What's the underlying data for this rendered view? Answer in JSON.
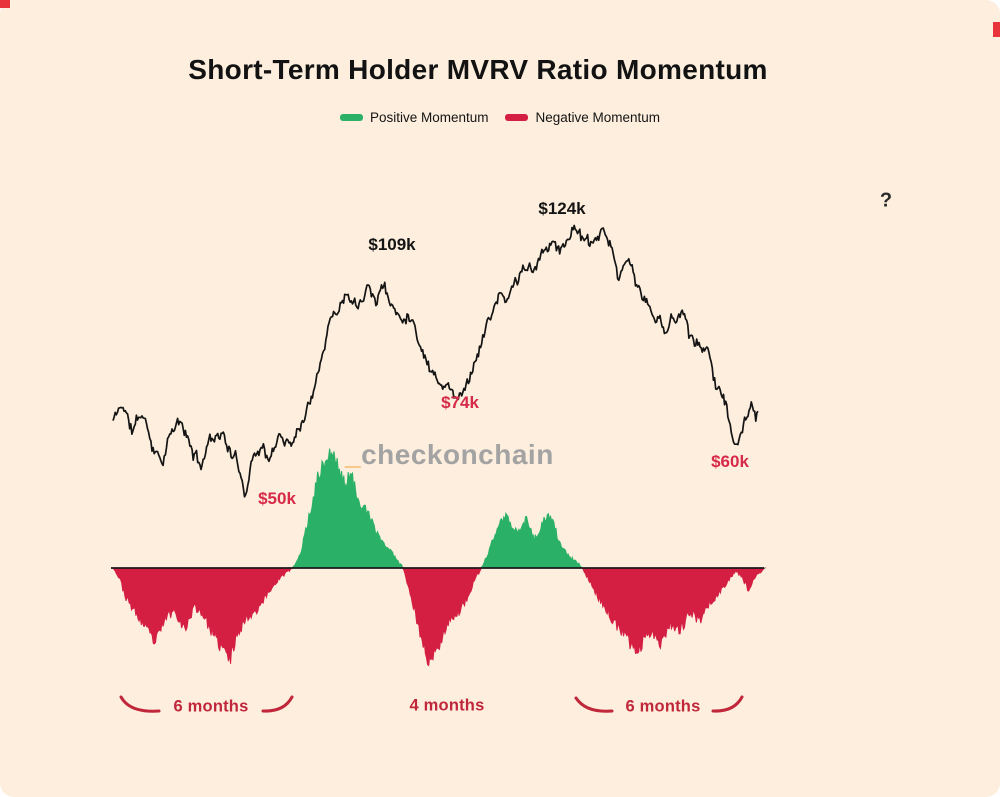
{
  "page": {
    "title": "Short-Term Holder MVRV Ratio Momentum",
    "background": "#fdeedd",
    "help_glyph": "?"
  },
  "legend": {
    "items": [
      {
        "label": "Positive Momentum",
        "color": "#2bb167"
      },
      {
        "label": "Negative Momentum",
        "color": "#d41f43"
      }
    ]
  },
  "watermark": {
    "underscore": "_",
    "text": "checkonchain",
    "underscore_color": "#f0a23b",
    "text_color": "#a3a3a3"
  },
  "price_annotations": [
    {
      "text": "$109k",
      "color": "#141414"
    },
    {
      "text": "$124k",
      "color": "#141414"
    },
    {
      "text": "$50k",
      "color": "#d62a48"
    },
    {
      "text": "$74k",
      "color": "#d62a48"
    },
    {
      "text": "$60k",
      "color": "#d62a48"
    }
  ],
  "duration_labels": [
    {
      "text": "6 months"
    },
    {
      "text": "4 months"
    },
    {
      "text": "6 months"
    }
  ],
  "duration_color": "#c0273b",
  "chart_data": [
    {
      "id": "price",
      "type": "line",
      "figure_title": "Short-Term Holder MVRV Ratio Momentum",
      "x_axis": "time (no ticks or labels shown)",
      "y_unit": "USD thousands",
      "ylim": [
        45,
        130
      ],
      "color": "#141414",
      "labeled_points": [
        {
          "label": "$50k",
          "value": 50,
          "x": 0.205,
          "kind": "swing-low"
        },
        {
          "label": "$109k",
          "value": 109,
          "x": 0.395,
          "kind": "swing-high"
        },
        {
          "label": "$74k",
          "value": 74,
          "x": 0.538,
          "kind": "swing-low"
        },
        {
          "label": "$124k",
          "value": 124,
          "x": 0.716,
          "kind": "swing-high"
        },
        {
          "label": "$60k",
          "value": 60,
          "x": 0.969,
          "kind": "swing-low"
        }
      ],
      "anchors": [
        [
          0.0,
          67
        ],
        [
          0.015,
          72
        ],
        [
          0.03,
          64
        ],
        [
          0.045,
          69
        ],
        [
          0.06,
          61
        ],
        [
          0.075,
          57
        ],
        [
          0.09,
          64
        ],
        [
          0.105,
          66
        ],
        [
          0.12,
          59
        ],
        [
          0.135,
          54
        ],
        [
          0.15,
          62
        ],
        [
          0.165,
          65
        ],
        [
          0.18,
          60
        ],
        [
          0.195,
          53
        ],
        [
          0.205,
          48
        ],
        [
          0.215,
          57
        ],
        [
          0.23,
          61
        ],
        [
          0.245,
          56
        ],
        [
          0.26,
          63
        ],
        [
          0.275,
          61
        ],
        [
          0.29,
          67
        ],
        [
          0.305,
          73
        ],
        [
          0.32,
          86
        ],
        [
          0.335,
          96
        ],
        [
          0.35,
          101
        ],
        [
          0.365,
          106
        ],
        [
          0.378,
          102
        ],
        [
          0.395,
          109
        ],
        [
          0.408,
          103
        ],
        [
          0.42,
          107
        ],
        [
          0.435,
          99
        ],
        [
          0.45,
          95
        ],
        [
          0.462,
          99
        ],
        [
          0.475,
          91
        ],
        [
          0.49,
          84
        ],
        [
          0.505,
          80
        ],
        [
          0.52,
          77
        ],
        [
          0.538,
          74
        ],
        [
          0.553,
          81
        ],
        [
          0.568,
          89
        ],
        [
          0.583,
          96
        ],
        [
          0.598,
          103
        ],
        [
          0.61,
          100
        ],
        [
          0.625,
          107
        ],
        [
          0.64,
          111
        ],
        [
          0.653,
          108
        ],
        [
          0.668,
          114
        ],
        [
          0.683,
          119
        ],
        [
          0.7,
          116
        ],
        [
          0.716,
          124
        ],
        [
          0.73,
          118
        ],
        [
          0.744,
          115
        ],
        [
          0.758,
          120
        ],
        [
          0.772,
          113
        ],
        [
          0.786,
          108
        ],
        [
          0.8,
          112
        ],
        [
          0.814,
          104
        ],
        [
          0.828,
          100
        ],
        [
          0.842,
          96
        ],
        [
          0.856,
          92
        ],
        [
          0.868,
          97
        ],
        [
          0.882,
          99
        ],
        [
          0.896,
          92
        ],
        [
          0.91,
          88
        ],
        [
          0.924,
          86
        ],
        [
          0.938,
          79
        ],
        [
          0.95,
          71
        ],
        [
          0.96,
          64
        ],
        [
          0.969,
          59
        ],
        [
          0.98,
          66
        ],
        [
          0.99,
          70
        ],
        [
          1.0,
          68
        ]
      ]
    },
    {
      "id": "momentum",
      "type": "area",
      "baseline": 0,
      "note": "oscillator values normalized to [-1,1]; no value axis shown in figure",
      "legend": [
        "Positive Momentum",
        "Negative Momentum"
      ],
      "legend_position": "top",
      "positive_color": "#2bb167",
      "negative_color": "#d41f43",
      "zero_line_color": "#1a1a1a",
      "segments": [
        {
          "sign": "negative",
          "x": [
            0.005,
            0.275
          ],
          "duration_label": "6 months"
        },
        {
          "sign": "positive",
          "x": [
            0.28,
            0.445
          ]
        },
        {
          "sign": "negative",
          "x": [
            0.445,
            0.565
          ],
          "duration_label": "4 months"
        },
        {
          "sign": "positive",
          "x": [
            0.565,
            0.72
          ]
        },
        {
          "sign": "negative",
          "x": [
            0.72,
            0.955
          ],
          "duration_label": "6 months"
        }
      ],
      "anchors": [
        [
          0.0,
          0
        ],
        [
          0.01,
          -0.1
        ],
        [
          0.02,
          -0.3
        ],
        [
          0.035,
          -0.45
        ],
        [
          0.05,
          -0.6
        ],
        [
          0.065,
          -0.75
        ],
        [
          0.08,
          -0.5
        ],
        [
          0.095,
          -0.42
        ],
        [
          0.11,
          -0.62
        ],
        [
          0.125,
          -0.38
        ],
        [
          0.14,
          -0.48
        ],
        [
          0.155,
          -0.7
        ],
        [
          0.17,
          -0.82
        ],
        [
          0.18,
          -0.92
        ],
        [
          0.19,
          -0.65
        ],
        [
          0.205,
          -0.5
        ],
        [
          0.22,
          -0.42
        ],
        [
          0.235,
          -0.28
        ],
        [
          0.25,
          -0.14
        ],
        [
          0.265,
          -0.05
        ],
        [
          0.275,
          0
        ],
        [
          0.285,
          0.08
        ],
        [
          0.295,
          0.3
        ],
        [
          0.305,
          0.55
        ],
        [
          0.315,
          0.8
        ],
        [
          0.325,
          0.92
        ],
        [
          0.335,
          1.0
        ],
        [
          0.345,
          0.88
        ],
        [
          0.355,
          0.72
        ],
        [
          0.365,
          0.8
        ],
        [
          0.375,
          0.62
        ],
        [
          0.385,
          0.52
        ],
        [
          0.395,
          0.42
        ],
        [
          0.405,
          0.3
        ],
        [
          0.42,
          0.18
        ],
        [
          0.435,
          0.08
        ],
        [
          0.445,
          0
        ],
        [
          0.455,
          -0.22
        ],
        [
          0.465,
          -0.5
        ],
        [
          0.475,
          -0.75
        ],
        [
          0.485,
          -0.95
        ],
        [
          0.495,
          -0.85
        ],
        [
          0.505,
          -0.68
        ],
        [
          0.515,
          -0.52
        ],
        [
          0.53,
          -0.45
        ],
        [
          0.545,
          -0.28
        ],
        [
          0.555,
          -0.12
        ],
        [
          0.565,
          0
        ],
        [
          0.575,
          0.12
        ],
        [
          0.585,
          0.28
        ],
        [
          0.595,
          0.4
        ],
        [
          0.605,
          0.45
        ],
        [
          0.615,
          0.3
        ],
        [
          0.625,
          0.36
        ],
        [
          0.635,
          0.42
        ],
        [
          0.645,
          0.25
        ],
        [
          0.655,
          0.32
        ],
        [
          0.665,
          0.45
        ],
        [
          0.675,
          0.38
        ],
        [
          0.685,
          0.22
        ],
        [
          0.695,
          0.12
        ],
        [
          0.71,
          0.05
        ],
        [
          0.72,
          0
        ],
        [
          0.73,
          -0.12
        ],
        [
          0.745,
          -0.3
        ],
        [
          0.76,
          -0.45
        ],
        [
          0.775,
          -0.6
        ],
        [
          0.79,
          -0.72
        ],
        [
          0.805,
          -0.85
        ],
        [
          0.815,
          -0.7
        ],
        [
          0.825,
          -0.62
        ],
        [
          0.84,
          -0.75
        ],
        [
          0.855,
          -0.55
        ],
        [
          0.87,
          -0.62
        ],
        [
          0.885,
          -0.45
        ],
        [
          0.9,
          -0.52
        ],
        [
          0.915,
          -0.35
        ],
        [
          0.93,
          -0.25
        ],
        [
          0.945,
          -0.12
        ],
        [
          0.955,
          -0.02
        ],
        [
          0.965,
          -0.1
        ],
        [
          0.975,
          -0.22
        ],
        [
          0.985,
          -0.08
        ],
        [
          1.0,
          0
        ]
      ]
    }
  ]
}
